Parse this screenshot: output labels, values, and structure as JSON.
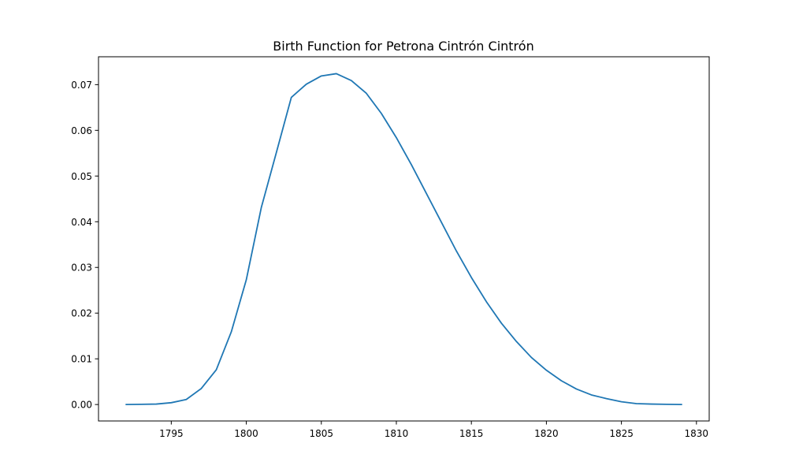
{
  "chart_data": {
    "type": "line",
    "title": "Birth Function for Petrona Cintrón Cintrón",
    "xlabel": "",
    "ylabel": "",
    "xlim": [
      1790.15,
      1830.85
    ],
    "ylim": [
      -0.0036,
      0.0761
    ],
    "x_ticks": [
      1795,
      1800,
      1805,
      1810,
      1815,
      1820,
      1825,
      1830
    ],
    "y_ticks": [
      0.0,
      0.01,
      0.02,
      0.03,
      0.04,
      0.05,
      0.06,
      0.07
    ],
    "x_tick_labels": [
      "1795",
      "1800",
      "1805",
      "1810",
      "1815",
      "1820",
      "1825",
      "1830"
    ],
    "y_tick_labels": [
      "0.00",
      "0.01",
      "0.02",
      "0.03",
      "0.04",
      "0.05",
      "0.06",
      "0.07"
    ],
    "grid": false,
    "series": [
      {
        "color": "#1f77b4",
        "x": [
          1792,
          1793,
          1794,
          1795,
          1796,
          1797,
          1798,
          1799,
          1800,
          1801,
          1802,
          1803,
          1804,
          1805,
          1806,
          1807,
          1808,
          1809,
          1810,
          1811,
          1812,
          1813,
          1814,
          1815,
          1816,
          1817,
          1818,
          1819,
          1820,
          1821,
          1822,
          1823,
          1824,
          1825,
          1826,
          1827,
          1828,
          1829
        ],
        "y": [
          0.0,
          5e-05,
          0.0001,
          0.0004,
          0.0011,
          0.0035,
          0.0076,
          0.0159,
          0.0273,
          0.0431,
          0.0551,
          0.0672,
          0.0701,
          0.0719,
          0.0724,
          0.0709,
          0.0681,
          0.0637,
          0.0584,
          0.0525,
          0.0462,
          0.0399,
          0.0336,
          0.0278,
          0.0225,
          0.0178,
          0.0138,
          0.0103,
          0.0075,
          0.0052,
          0.0034,
          0.0021,
          0.0013,
          0.0006,
          0.0002,
          0.0001,
          5e-05,
          0.0
        ]
      }
    ]
  }
}
